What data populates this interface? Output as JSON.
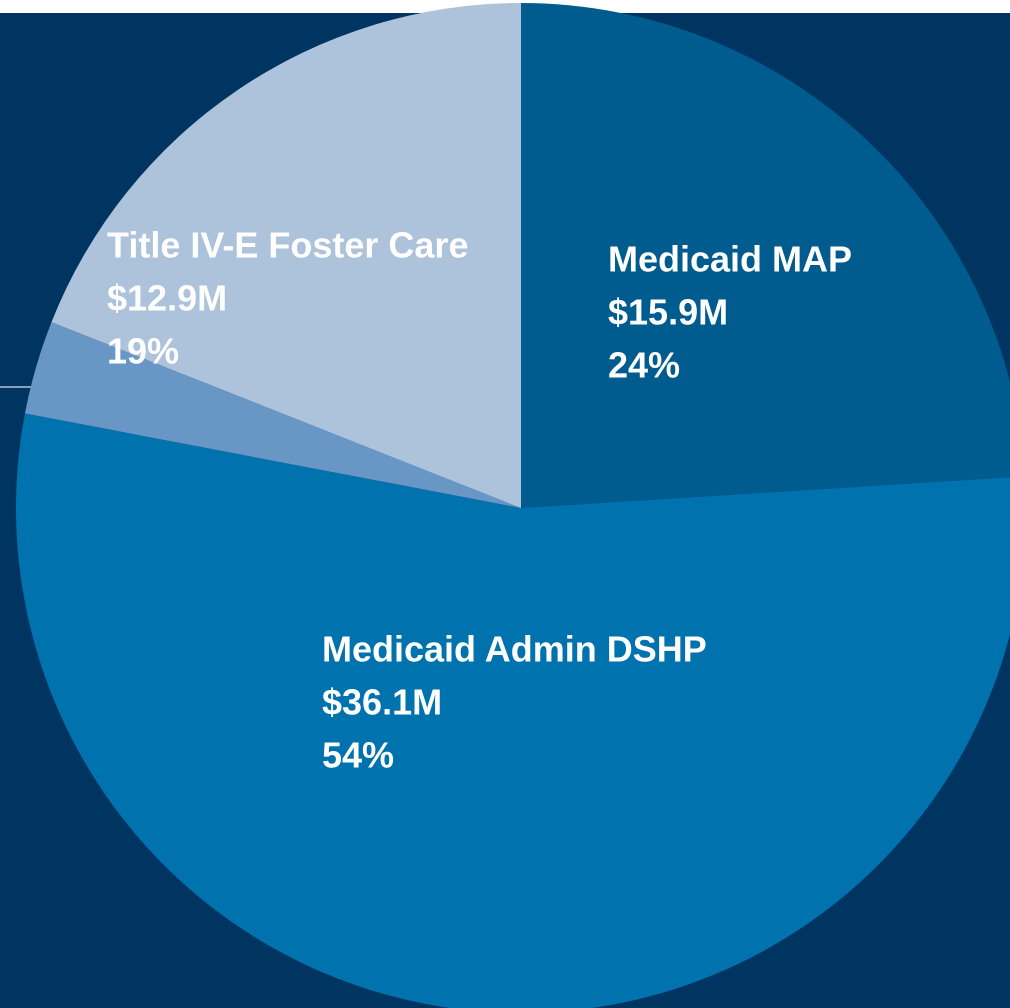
{
  "chart_data": {
    "type": "pie",
    "categories": [
      "Medicaid MAP",
      "Medicaid Admin DSHP",
      null,
      "Title IV-E Foster Care"
    ],
    "values": [
      24,
      54,
      3,
      19
    ],
    "value_labels": [
      "24%",
      "54%",
      null,
      "19%"
    ],
    "amount_labels": [
      "$15.9M",
      "$36.1M",
      null,
      "$12.9M"
    ],
    "colors": [
      "#005b8e",
      "#0072ae",
      "#6897c6",
      "#adc2db"
    ],
    "start_angle": 0,
    "direction": "clockwise"
  }
}
